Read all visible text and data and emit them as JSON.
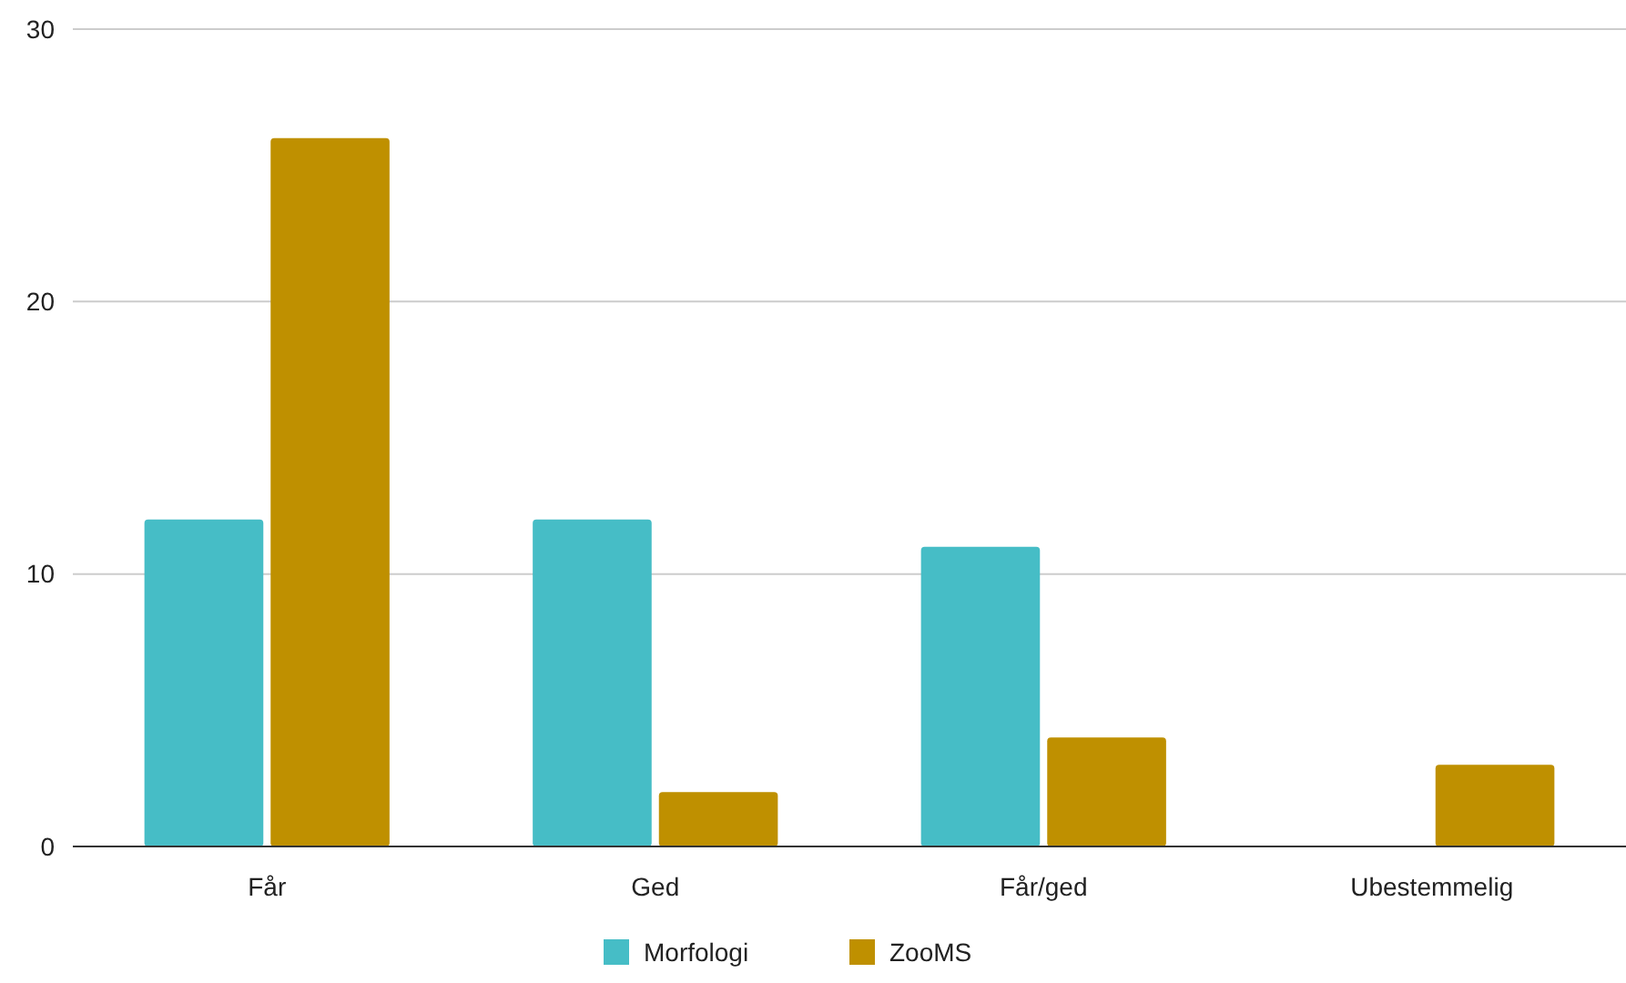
{
  "chart_data": {
    "type": "bar",
    "categories": [
      "Får",
      "Ged",
      "Får/ged",
      "Ubestemmelig"
    ],
    "series": [
      {
        "name": "Morfologi",
        "color": "#46bdc6",
        "values": [
          12,
          12,
          11,
          null
        ]
      },
      {
        "name": "ZooMS",
        "color": "#bf9000",
        "values": [
          26,
          2,
          4,
          3
        ]
      }
    ],
    "ylim": [
      0,
      30
    ],
    "yticks": [
      0,
      10,
      20,
      30
    ],
    "grid": "y",
    "legend": "bottom"
  }
}
